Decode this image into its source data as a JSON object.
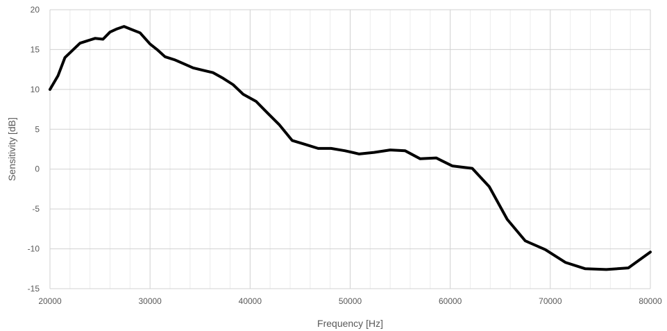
{
  "chart_data": {
    "type": "line",
    "title": "",
    "xlabel": "Frequency [Hz]",
    "ylabel": "Sensitivity [dB]",
    "xlim": [
      20000,
      80000
    ],
    "ylim": [
      -15,
      20
    ],
    "x_major_ticks": [
      20000,
      30000,
      40000,
      50000,
      60000,
      70000,
      80000
    ],
    "x_tick_labels": [
      "20000",
      "30000",
      "40000",
      "50000",
      "60000",
      "70000",
      "80000"
    ],
    "x_minor_step": 2000,
    "y_major_ticks": [
      -15,
      -10,
      -5,
      0,
      5,
      10,
      15,
      20
    ],
    "y_tick_labels": [
      "-15",
      "-10",
      "-5",
      "0",
      "5",
      "10",
      "15",
      "20"
    ],
    "grid": "major and minor",
    "legend": "none",
    "series": [
      {
        "color": "#000000",
        "x": [
          20000,
          20800,
          21500,
          23000,
          24500,
          25300,
          26000,
          26700,
          27400,
          28000,
          29000,
          30000,
          30700,
          31500,
          32500,
          33400,
          34300,
          35300,
          36300,
          37300,
          38300,
          39300,
          40600,
          41700,
          42900,
          44200,
          45500,
          46800,
          48100,
          49500,
          50900,
          52400,
          54000,
          55500,
          57000,
          58600,
          60200,
          62200,
          63900,
          65700,
          67500,
          69500,
          71500,
          73500,
          75600,
          77800,
          80000
        ],
        "y": [
          10.0,
          11.7,
          14.0,
          15.8,
          16.4,
          16.3,
          17.2,
          17.6,
          17.9,
          17.6,
          17.1,
          15.7,
          15.0,
          14.1,
          13.7,
          13.2,
          12.7,
          12.4,
          12.1,
          11.4,
          10.6,
          9.4,
          8.5,
          7.1,
          5.6,
          3.6,
          3.1,
          2.6,
          2.6,
          2.3,
          1.9,
          2.1,
          2.4,
          2.3,
          1.3,
          1.4,
          0.4,
          0.1,
          -2.2,
          -6.3,
          -9.0,
          -10.1,
          -11.7,
          -12.5,
          -12.6,
          -12.4,
          -10.4
        ]
      }
    ]
  }
}
